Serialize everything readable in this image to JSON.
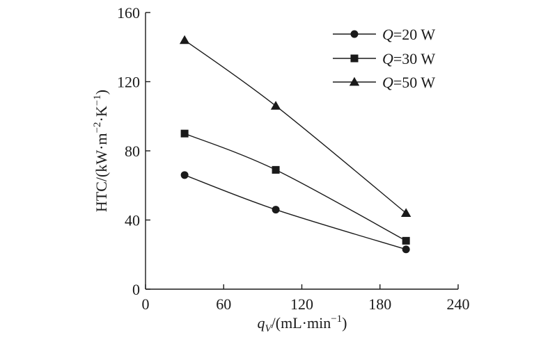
{
  "chart_data": {
    "type": "line",
    "xlabel": {
      "pre": "q",
      "sub": "V",
      "post": "/(mL·min",
      "sup": "−1",
      "end": ")"
    },
    "ylabel": {
      "pre": "HTC/(kW·m",
      "sup1": "−2",
      "mid": "·K",
      "sup2": "−1",
      "end": ")"
    },
    "xlim": [
      0,
      240
    ],
    "ylim": [
      0,
      160
    ],
    "xticks": [
      0,
      60,
      120,
      180,
      240
    ],
    "yticks": [
      0,
      40,
      80,
      120,
      160
    ],
    "grid": false,
    "legend_position": "top-right",
    "series": [
      {
        "name": "Q=20 W",
        "name_var": "Q",
        "name_rest": "=20 W",
        "marker": "circle",
        "x": [
          30,
          100,
          200
        ],
        "y": [
          66,
          46,
          23
        ]
      },
      {
        "name": "Q=30 W",
        "name_var": "Q",
        "name_rest": "=30 W",
        "marker": "square",
        "x": [
          30,
          100,
          200
        ],
        "y": [
          90,
          69,
          28
        ]
      },
      {
        "name": "Q=50 W",
        "name_var": "Q",
        "name_rest": "=50 W",
        "marker": "triangle",
        "x": [
          30,
          100,
          200
        ],
        "y": [
          144,
          106,
          44
        ]
      }
    ]
  }
}
